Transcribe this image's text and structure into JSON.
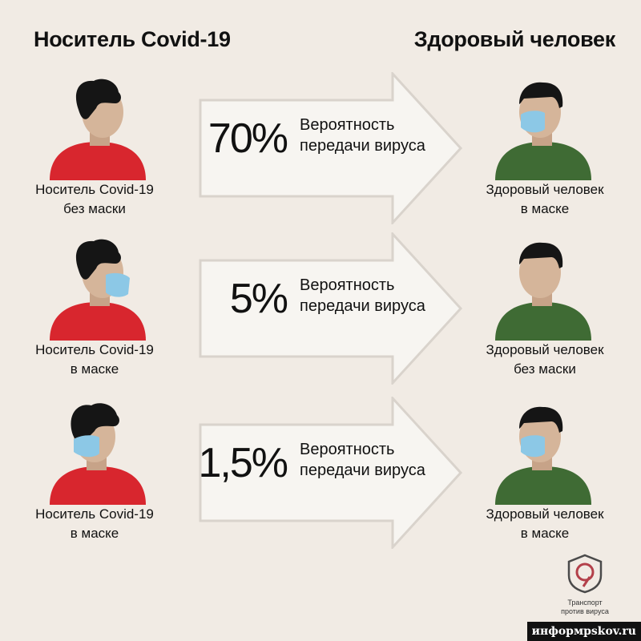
{
  "headers": {
    "left": "Носитель Covid-19",
    "right": "Здоровый человек"
  },
  "scenarios": [
    {
      "percent": "70%",
      "probability_line1": "Вероятность",
      "probability_line2": "передачи вируса",
      "carrier_line1": "Носитель Covid-19",
      "carrier_line2": "без маски",
      "healthy_line1": "Здоровый человек",
      "healthy_line2": "в маске"
    },
    {
      "percent": "5%",
      "probability_line1": "Вероятность",
      "probability_line2": "передачи вируса",
      "carrier_line1": "Носитель Covid-19",
      "carrier_line2": "в маске",
      "healthy_line1": "Здоровый человек",
      "healthy_line2": "без маски"
    },
    {
      "percent": "1,5%",
      "probability_line1": "Вероятность",
      "probability_line2": "передачи вируса",
      "carrier_line1": "Носитель Covid-19",
      "carrier_line2": "в маске",
      "healthy_line1": "Здоровый человек",
      "healthy_line2": "в маске"
    }
  ],
  "logo": {
    "line1": "Транспорт",
    "line2": "против вируса"
  },
  "watermark": "информpskov.ru",
  "colors": {
    "background": "#f1ebe4",
    "carrier_shirt": "#d8262e",
    "healthy_shirt": "#3f6b34",
    "mask": "#8cc8e6",
    "skin": "#d5b59a",
    "hair": "#151515",
    "logo": "#b3404a"
  }
}
